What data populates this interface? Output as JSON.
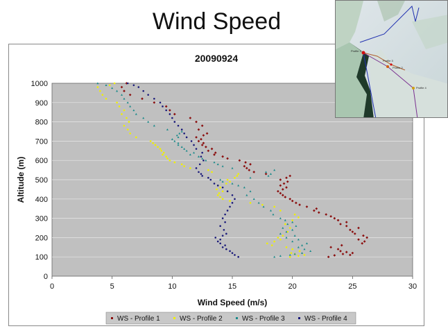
{
  "slide": {
    "title": "Wind Speed"
  },
  "chart_data": {
    "type": "scatter",
    "title": "20090924",
    "xlabel": "Wind Speed (m/s)",
    "ylabel": "Altitude (m)",
    "xlim": [
      0,
      30
    ],
    "ylim": [
      0,
      1000
    ],
    "x_ticks": [
      "0",
      "5",
      "10",
      "15",
      "20",
      "25",
      "30"
    ],
    "y_ticks": [
      "0",
      "100",
      "200",
      "300",
      "400",
      "500",
      "600",
      "700",
      "800",
      "900",
      "1000"
    ],
    "grid": true,
    "plot_background": "#c0c0c0",
    "legend_position": "bottom",
    "series": [
      {
        "name": "WS - Profile 1",
        "color": "#8b1010",
        "marker": "diamond",
        "points": [
          [
            23.0,
            100
          ],
          [
            23.5,
            108
          ],
          [
            24.2,
            115
          ],
          [
            24.8,
            110
          ],
          [
            25.0,
            120
          ],
          [
            24.0,
            130
          ],
          [
            23.8,
            140
          ],
          [
            23.2,
            150
          ],
          [
            24.1,
            160
          ],
          [
            24.5,
            125
          ],
          [
            25.8,
            170
          ],
          [
            26.0,
            180
          ],
          [
            25.5,
            190
          ],
          [
            26.2,
            200
          ],
          [
            25.9,
            210
          ],
          [
            25.2,
            220
          ],
          [
            25.0,
            230
          ],
          [
            24.8,
            240
          ],
          [
            25.5,
            250
          ],
          [
            24.5,
            260
          ],
          [
            24.0,
            270
          ],
          [
            24.5,
            280
          ],
          [
            23.8,
            290
          ],
          [
            23.5,
            300
          ],
          [
            23.2,
            310
          ],
          [
            22.8,
            320
          ],
          [
            22.2,
            330
          ],
          [
            21.8,
            340
          ],
          [
            22.0,
            350
          ],
          [
            21.2,
            360
          ],
          [
            20.6,
            370
          ],
          [
            20.3,
            380
          ],
          [
            20.0,
            390
          ],
          [
            19.8,
            400
          ],
          [
            19.4,
            410
          ],
          [
            19.2,
            420
          ],
          [
            19.0,
            430
          ],
          [
            18.8,
            440
          ],
          [
            19.2,
            450
          ],
          [
            19.5,
            460
          ],
          [
            19.0,
            470
          ],
          [
            19.3,
            480
          ],
          [
            19.6,
            490
          ],
          [
            19.0,
            500
          ],
          [
            19.5,
            510
          ],
          [
            19.8,
            520
          ],
          [
            17.8,
            530
          ],
          [
            16.8,
            540
          ],
          [
            16.4,
            550
          ],
          [
            16.2,
            560
          ],
          [
            16.0,
            570
          ],
          [
            16.5,
            580
          ],
          [
            16.1,
            590
          ],
          [
            15.6,
            600
          ],
          [
            14.6,
            610
          ],
          [
            14.2,
            620
          ],
          [
            13.5,
            630
          ],
          [
            13.6,
            640
          ],
          [
            13.0,
            650
          ],
          [
            13.3,
            660
          ],
          [
            12.8,
            670
          ],
          [
            12.5,
            680
          ],
          [
            12.6,
            690
          ],
          [
            12.2,
            700
          ],
          [
            12.4,
            710
          ],
          [
            12.0,
            720
          ],
          [
            12.6,
            730
          ],
          [
            12.9,
            740
          ],
          [
            12.2,
            760
          ],
          [
            12.5,
            780
          ],
          [
            12.0,
            800
          ],
          [
            11.5,
            820
          ],
          [
            10.2,
            840
          ],
          [
            9.8,
            860
          ],
          [
            9.5,
            880
          ],
          [
            8.5,
            900
          ],
          [
            7.5,
            920
          ],
          [
            6.5,
            940
          ],
          [
            6.0,
            960
          ],
          [
            5.8,
            980
          ],
          [
            6.2,
            1000
          ]
        ]
      },
      {
        "name": "WS - Profile 2",
        "color": "#f0f000",
        "marker": "circle",
        "points": [
          [
            19.8,
            100
          ],
          [
            20.5,
            105
          ],
          [
            21.0,
            110
          ],
          [
            20.2,
            115
          ],
          [
            19.9,
            120
          ],
          [
            20.6,
            130
          ],
          [
            20.0,
            140
          ],
          [
            19.5,
            150
          ],
          [
            18.3,
            160
          ],
          [
            17.9,
            170
          ],
          [
            18.5,
            180
          ],
          [
            19.0,
            190
          ],
          [
            18.8,
            200
          ],
          [
            19.2,
            210
          ],
          [
            19.6,
            230
          ],
          [
            19.8,
            250
          ],
          [
            19.4,
            270
          ],
          [
            20.0,
            290
          ],
          [
            20.5,
            305
          ],
          [
            20.2,
            320
          ],
          [
            19.0,
            340
          ],
          [
            18.5,
            360
          ],
          [
            17.5,
            370
          ],
          [
            16.5,
            380
          ],
          [
            14.8,
            390
          ],
          [
            14.2,
            400
          ],
          [
            14.0,
            410
          ],
          [
            13.8,
            420
          ],
          [
            13.9,
            430
          ],
          [
            14.2,
            440
          ],
          [
            13.7,
            450
          ],
          [
            14.0,
            460
          ],
          [
            13.8,
            470
          ],
          [
            14.5,
            480
          ],
          [
            14.8,
            490
          ],
          [
            14.6,
            500
          ],
          [
            15.2,
            510
          ],
          [
            15.4,
            520
          ],
          [
            15.5,
            530
          ],
          [
            13.3,
            540
          ],
          [
            13.0,
            550
          ],
          [
            11.5,
            560
          ],
          [
            11.0,
            570
          ],
          [
            10.8,
            580
          ],
          [
            10.2,
            590
          ],
          [
            9.8,
            600
          ],
          [
            9.6,
            610
          ],
          [
            9.5,
            620
          ],
          [
            9.2,
            630
          ],
          [
            9.3,
            640
          ],
          [
            9.1,
            650
          ],
          [
            9.0,
            660
          ],
          [
            8.8,
            670
          ],
          [
            8.6,
            680
          ],
          [
            8.4,
            690
          ],
          [
            8.2,
            700
          ],
          [
            7.0,
            720
          ],
          [
            6.5,
            740
          ],
          [
            6.3,
            760
          ],
          [
            6.0,
            780
          ],
          [
            6.4,
            800
          ],
          [
            6.2,
            820
          ],
          [
            5.8,
            840
          ],
          [
            6.0,
            860
          ],
          [
            5.6,
            880
          ],
          [
            5.4,
            900
          ],
          [
            4.5,
            920
          ],
          [
            4.2,
            940
          ],
          [
            4.0,
            960
          ],
          [
            3.8,
            980
          ],
          [
            4.8,
            990
          ],
          [
            5.2,
            1000
          ]
        ]
      },
      {
        "name": "WS - Profile 3",
        "color": "#1a8a8a",
        "marker": "triangle",
        "points": [
          [
            18.5,
            100
          ],
          [
            19.0,
            105
          ],
          [
            19.8,
            110
          ],
          [
            20.2,
            115
          ],
          [
            20.8,
            120
          ],
          [
            21.5,
            130
          ],
          [
            21.0,
            140
          ],
          [
            20.5,
            150
          ],
          [
            20.8,
            160
          ],
          [
            21.2,
            170
          ],
          [
            20.0,
            180
          ],
          [
            20.5,
            190
          ],
          [
            19.5,
            200
          ],
          [
            20.2,
            210
          ],
          [
            19.0,
            220
          ],
          [
            19.5,
            230
          ],
          [
            20.0,
            240
          ],
          [
            19.2,
            250
          ],
          [
            20.3,
            260
          ],
          [
            19.6,
            270
          ],
          [
            20.0,
            280
          ],
          [
            19.4,
            290
          ],
          [
            19.0,
            300
          ],
          [
            18.4,
            320
          ],
          [
            18.2,
            340
          ],
          [
            17.6,
            360
          ],
          [
            17.2,
            380
          ],
          [
            16.8,
            400
          ],
          [
            16.2,
            420
          ],
          [
            16.5,
            440
          ],
          [
            16.0,
            460
          ],
          [
            15.5,
            470
          ],
          [
            15.0,
            480
          ],
          [
            14.2,
            490
          ],
          [
            14.0,
            500
          ],
          [
            16.5,
            510
          ],
          [
            18.0,
            520
          ],
          [
            18.2,
            530
          ],
          [
            17.8,
            540
          ],
          [
            18.5,
            550
          ],
          [
            15.0,
            560
          ],
          [
            14.2,
            570
          ],
          [
            13.8,
            580
          ],
          [
            13.5,
            590
          ],
          [
            12.8,
            600
          ],
          [
            12.5,
            610
          ],
          [
            12.2,
            620
          ],
          [
            11.5,
            630
          ],
          [
            11.8,
            640
          ],
          [
            11.2,
            650
          ],
          [
            11.0,
            660
          ],
          [
            10.8,
            670
          ],
          [
            10.5,
            680
          ],
          [
            10.5,
            690
          ],
          [
            10.2,
            700
          ],
          [
            10.0,
            710
          ],
          [
            10.5,
            720
          ],
          [
            10.4,
            730
          ],
          [
            10.6,
            740
          ],
          [
            10.8,
            750
          ],
          [
            9.6,
            760
          ],
          [
            8.5,
            780
          ],
          [
            8.0,
            800
          ],
          [
            7.6,
            820
          ],
          [
            7.0,
            840
          ],
          [
            6.8,
            860
          ],
          [
            6.5,
            880
          ],
          [
            6.3,
            900
          ],
          [
            6.0,
            920
          ],
          [
            5.8,
            940
          ],
          [
            5.4,
            960
          ],
          [
            5.0,
            975
          ],
          [
            4.5,
            990
          ],
          [
            3.8,
            1000
          ]
        ]
      },
      {
        "name": "WS - Profile 4",
        "color": "#1a1a7a",
        "marker": "circle",
        "points": [
          [
            15.5,
            100
          ],
          [
            15.2,
            110
          ],
          [
            15.0,
            120
          ],
          [
            14.8,
            130
          ],
          [
            14.5,
            140
          ],
          [
            14.2,
            150
          ],
          [
            14.4,
            160
          ],
          [
            14.0,
            170
          ],
          [
            13.8,
            180
          ],
          [
            14.0,
            190
          ],
          [
            13.6,
            200
          ],
          [
            14.2,
            210
          ],
          [
            14.5,
            220
          ],
          [
            14.3,
            240
          ],
          [
            14.0,
            260
          ],
          [
            14.4,
            280
          ],
          [
            14.2,
            300
          ],
          [
            14.4,
            320
          ],
          [
            14.6,
            340
          ],
          [
            14.8,
            360
          ],
          [
            15.0,
            380
          ],
          [
            15.2,
            400
          ],
          [
            15.0,
            420
          ],
          [
            14.6,
            440
          ],
          [
            14.2,
            460
          ],
          [
            13.8,
            470
          ],
          [
            13.5,
            480
          ],
          [
            13.2,
            500
          ],
          [
            13.0,
            510
          ],
          [
            12.5,
            520
          ],
          [
            12.4,
            530
          ],
          [
            12.2,
            540
          ],
          [
            12.0,
            560
          ],
          [
            12.3,
            580
          ],
          [
            12.6,
            600
          ],
          [
            12.4,
            620
          ],
          [
            12.5,
            640
          ],
          [
            12.0,
            660
          ],
          [
            11.8,
            680
          ],
          [
            11.6,
            700
          ],
          [
            11.2,
            720
          ],
          [
            11.0,
            740
          ],
          [
            10.8,
            760
          ],
          [
            10.5,
            780
          ],
          [
            10.2,
            800
          ],
          [
            10.0,
            820
          ],
          [
            9.8,
            840
          ],
          [
            9.5,
            860
          ],
          [
            9.2,
            880
          ],
          [
            9.0,
            900
          ],
          [
            8.5,
            920
          ],
          [
            8.0,
            940
          ],
          [
            7.6,
            960
          ],
          [
            7.2,
            980
          ],
          [
            6.8,
            990
          ],
          [
            6.3,
            1000
          ]
        ]
      }
    ]
  },
  "map_inset": {
    "labels": [
      "Profile 1",
      "Profile 2",
      "Profile 3",
      "Profile 4"
    ]
  }
}
